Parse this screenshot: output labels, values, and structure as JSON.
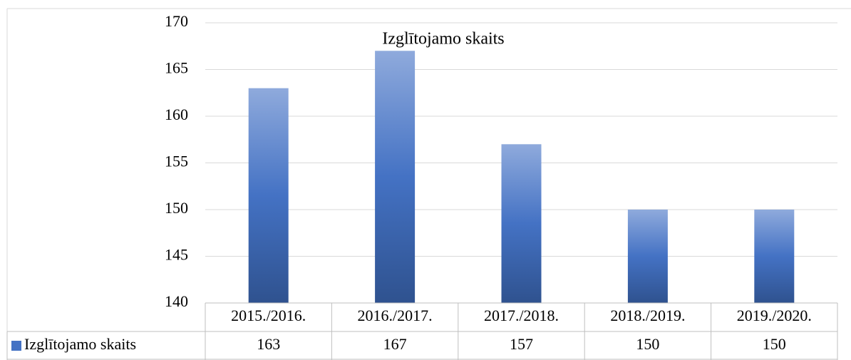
{
  "chart_data": {
    "type": "bar",
    "title": "Izglītojamo skaits",
    "categories": [
      "2015./2016.",
      "2016./2017.",
      "2017./2018.",
      "2018./2019.",
      "2019./2020."
    ],
    "series": [
      {
        "name": "Izglītojamo skaits",
        "color": "#4472c4",
        "values": [
          163,
          167,
          157,
          150,
          150
        ]
      }
    ],
    "ylim": [
      140,
      170
    ],
    "yticks": [
      140,
      145,
      150,
      155,
      160,
      165,
      170
    ],
    "grid": true,
    "data_table": true
  }
}
